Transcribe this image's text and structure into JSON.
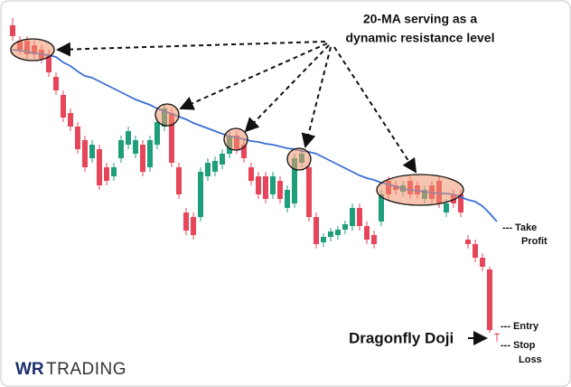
{
  "chart_data": {
    "type": "candlestick",
    "annotation": [
      "20-MA serving as a",
      "dynamic resistance level"
    ],
    "pattern_label": "Dragonfly Doji",
    "take_profit_label": [
      "--- Take",
      "Profit"
    ],
    "entry_label": "--- Entry",
    "stop_loss_label": [
      "--- Stop",
      "Loss"
    ],
    "brand": [
      "WR",
      "TRADING"
    ],
    "up_color": "#1f9e7c",
    "down_color": "#e6455a",
    "ylim": [
      0,
      428
    ],
    "ohlc": [
      [
        400,
        408,
        383,
        388
      ],
      [
        383,
        388,
        368,
        373
      ],
      [
        383,
        388,
        363,
        368
      ],
      [
        378,
        383,
        363,
        368
      ],
      [
        373,
        378,
        358,
        363
      ],
      [
        368,
        373,
        343,
        348
      ],
      [
        343,
        348,
        323,
        328
      ],
      [
        323,
        328,
        293,
        298
      ],
      [
        303,
        308,
        283,
        288
      ],
      [
        288,
        293,
        258,
        263
      ],
      [
        273,
        278,
        238,
        243
      ],
      [
        253,
        273,
        248,
        268
      ],
      [
        263,
        268,
        218,
        223
      ],
      [
        243,
        248,
        223,
        228
      ],
      [
        233,
        248,
        228,
        243
      ],
      [
        253,
        278,
        248,
        273
      ],
      [
        268,
        288,
        263,
        283
      ],
      [
        258,
        278,
        253,
        273
      ],
      [
        268,
        273,
        233,
        238
      ],
      [
        243,
        278,
        238,
        273
      ],
      [
        268,
        298,
        263,
        293
      ],
      [
        288,
        313,
        283,
        308
      ],
      [
        303,
        308,
        243,
        248
      ],
      [
        243,
        248,
        208,
        213
      ],
      [
        193,
        198,
        168,
        173
      ],
      [
        188,
        193,
        163,
        168
      ],
      [
        188,
        243,
        183,
        238
      ],
      [
        233,
        253,
        228,
        248
      ],
      [
        238,
        255,
        233,
        250
      ],
      [
        246,
        263,
        241,
        258
      ],
      [
        258,
        283,
        253,
        278
      ],
      [
        278,
        283,
        258,
        263
      ],
      [
        268,
        273,
        248,
        253
      ],
      [
        243,
        248,
        223,
        228
      ],
      [
        233,
        238,
        208,
        213
      ],
      [
        233,
        238,
        203,
        208
      ],
      [
        213,
        238,
        208,
        233
      ],
      [
        228,
        233,
        203,
        208
      ],
      [
        198,
        223,
        193,
        218
      ],
      [
        203,
        258,
        198,
        253
      ],
      [
        248,
        263,
        243,
        258
      ],
      [
        243,
        248,
        183,
        188
      ],
      [
        188,
        193,
        153,
        158
      ],
      [
        160,
        170,
        155,
        166
      ],
      [
        166,
        176,
        161,
        172
      ],
      [
        168,
        178,
        163,
        174
      ],
      [
        174,
        184,
        169,
        180
      ],
      [
        178,
        203,
        173,
        198
      ],
      [
        198,
        203,
        173,
        178
      ],
      [
        178,
        183,
        158,
        163
      ],
      [
        168,
        173,
        153,
        158
      ],
      [
        183,
        218,
        178,
        213
      ],
      [
        228,
        233,
        208,
        213
      ],
      [
        223,
        228,
        213,
        218
      ],
      [
        216,
        228,
        211,
        223
      ],
      [
        228,
        233,
        208,
        213
      ],
      [
        223,
        228,
        208,
        213
      ],
      [
        208,
        223,
        203,
        218
      ],
      [
        223,
        228,
        203,
        208
      ],
      [
        228,
        233,
        198,
        203
      ],
      [
        193,
        208,
        188,
        203
      ],
      [
        213,
        218,
        198,
        203
      ],
      [
        213,
        218,
        188,
        193
      ],
      [
        163,
        168,
        153,
        158
      ],
      [
        158,
        163,
        138,
        143
      ],
      [
        143,
        148,
        128,
        133
      ],
      [
        130,
        133,
        60,
        63
      ],
      [
        59,
        60,
        50,
        58
      ]
    ],
    "ma": {
      "color": "#3b6fd6",
      "values": [
        373,
        372,
        371,
        369,
        368,
        367,
        365,
        359,
        355,
        349,
        344,
        342,
        338,
        334,
        330,
        326,
        322,
        318,
        315,
        312,
        308,
        305,
        302,
        299,
        296,
        292,
        289,
        286,
        283,
        280,
        277,
        276,
        274,
        272,
        271,
        269,
        268,
        266,
        264,
        263,
        261,
        260,
        258,
        254,
        250,
        246,
        242,
        238,
        234,
        231,
        229,
        226,
        224,
        222,
        219,
        218,
        217,
        216,
        215,
        214,
        214,
        213,
        210,
        207,
        205,
        200,
        192,
        183
      ]
    }
  }
}
